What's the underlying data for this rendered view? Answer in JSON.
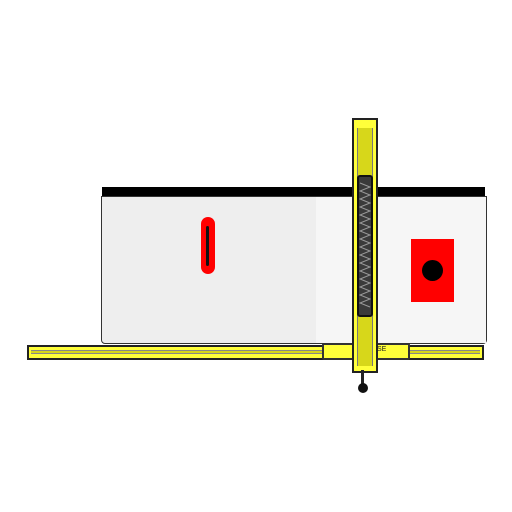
{
  "scene": {
    "description_items": [
      "table-saw-top",
      "blade-slot",
      "fence-rail",
      "rip-fence",
      "adjust-knob"
    ],
    "colors": {
      "table": "#eeeeee",
      "rail": "#ffff3a",
      "slot": "#ff0000",
      "pad": "#ff0000",
      "fence_face": "#3a3a3a",
      "outline": "#222222"
    },
    "icons": {
      "hole": "circle-icon",
      "knob": "knob-icon"
    },
    "labels": {
      "rail_marker": "SE"
    }
  }
}
